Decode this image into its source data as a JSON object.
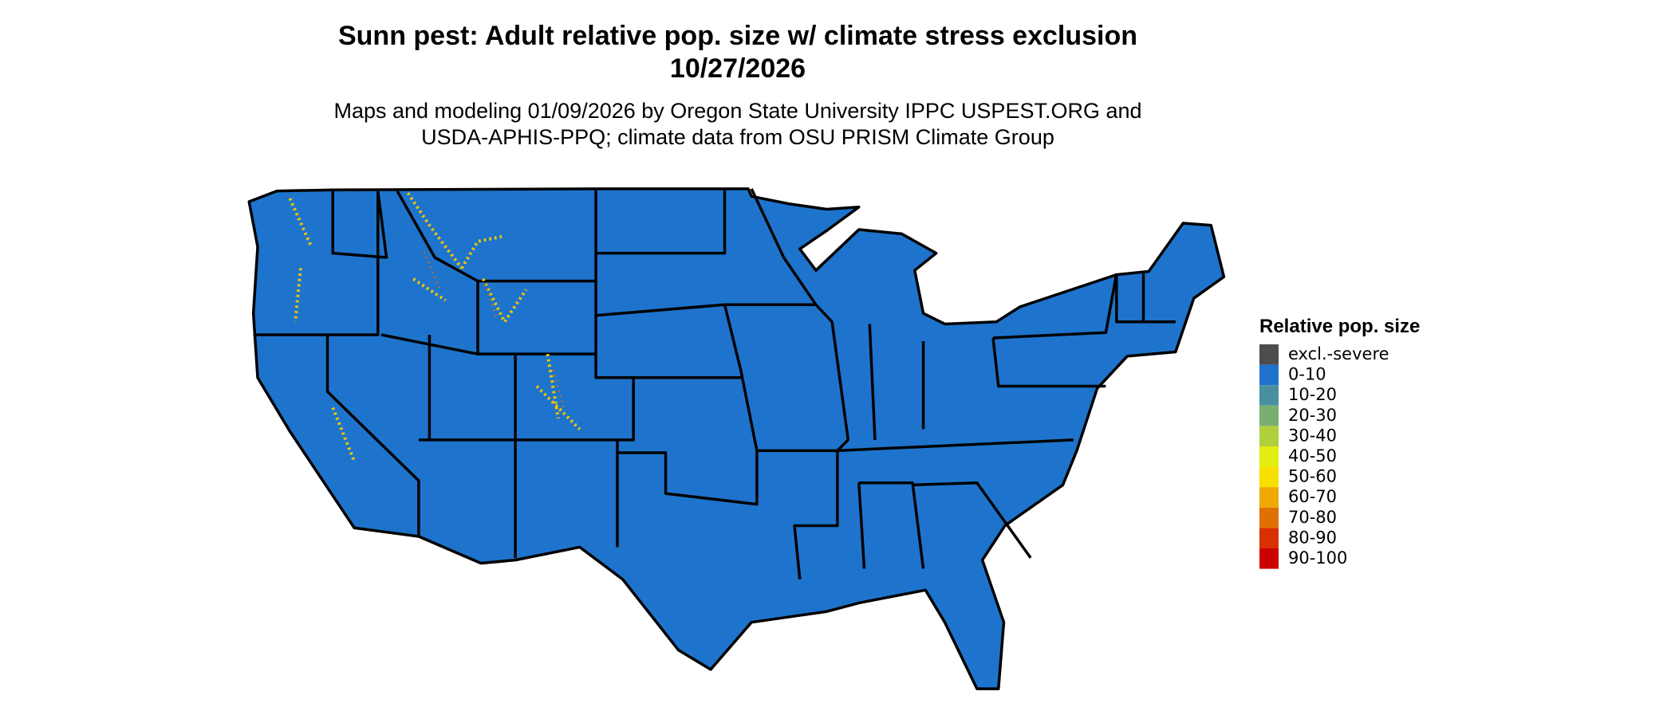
{
  "header": {
    "title": "Sunn pest: Adult relative pop. size w/ climate stress exclusion",
    "date": "10/27/2026",
    "subtitle": [
      "Maps and modeling 01/09/2026 by Oregon State University IPPC USPEST.ORG and",
      "USDA-APHIS-PPQ; climate data from OSU PRISM Climate Group"
    ]
  },
  "legend": {
    "title": "Relative pop. size",
    "items": [
      {
        "label": "excl.-severe",
        "color": "#4d4d4d"
      },
      {
        "label": "0-10",
        "color": "#1e74cc"
      },
      {
        "label": "10-20",
        "color": "#4a8fa0"
      },
      {
        "label": "20-30",
        "color": "#7aae70"
      },
      {
        "label": "30-40",
        "color": "#b0cf3c"
      },
      {
        "label": "40-50",
        "color": "#e0ee10"
      },
      {
        "label": "50-60",
        "color": "#f7e000"
      },
      {
        "label": "60-70",
        "color": "#f0a800"
      },
      {
        "label": "70-80",
        "color": "#e07000"
      },
      {
        "label": "80-90",
        "color": "#d83000"
      },
      {
        "label": "90-100",
        "color": "#cc0000"
      }
    ]
  }
}
